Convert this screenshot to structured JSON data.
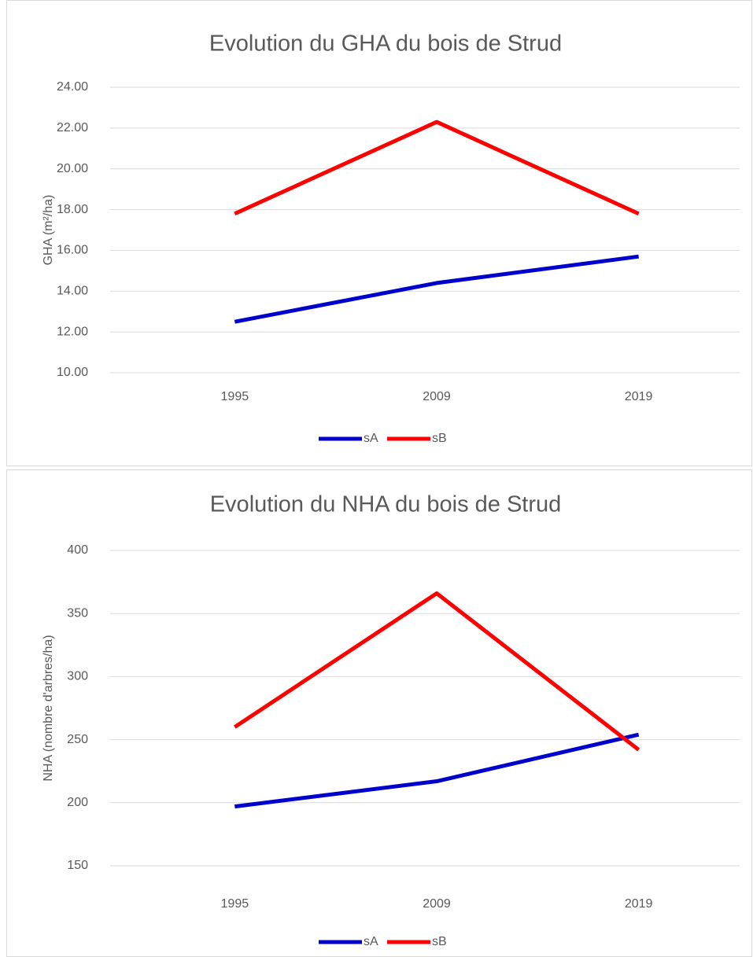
{
  "chart_data": [
    {
      "type": "line",
      "title": "Evolution du GHA du bois de Strud",
      "y_label": "GHA (m²/ha)",
      "categories": [
        "1995",
        "2009",
        "2019"
      ],
      "series": [
        {
          "name": "sA",
          "color": "#0000cc",
          "values": [
            12.5,
            14.4,
            15.7
          ]
        },
        {
          "name": "sB",
          "color": "#ff0000",
          "values": [
            17.8,
            22.3,
            17.8
          ]
        }
      ],
      "ylim": [
        10,
        24
      ],
      "yticks": [
        {
          "value": 10,
          "label": "10.00"
        },
        {
          "value": 12,
          "label": "12.00"
        },
        {
          "value": 14,
          "label": "14.00"
        },
        {
          "value": 16,
          "label": "16.00"
        },
        {
          "value": 18,
          "label": "18.00"
        },
        {
          "value": 20,
          "label": "20.00"
        },
        {
          "value": 22,
          "label": "22.00"
        },
        {
          "value": 24,
          "label": "24.00"
        }
      ],
      "grid": true,
      "legend": "bottom"
    },
    {
      "type": "line",
      "title": "Evolution du NHA du bois de Strud",
      "y_label": "NHA (nombre d'arbres/ha)",
      "categories": [
        "1995",
        "2009",
        "2019"
      ],
      "series": [
        {
          "name": "sA",
          "color": "#0000cc",
          "values": [
            197,
            217,
            254
          ]
        },
        {
          "name": "sB",
          "color": "#ff0000",
          "values": [
            260,
            366,
            242
          ]
        }
      ],
      "ylim": [
        150,
        400
      ],
      "yticks": [
        150,
        200,
        250,
        300,
        350,
        400
      ],
      "grid": true,
      "legend": "bottom"
    }
  ]
}
